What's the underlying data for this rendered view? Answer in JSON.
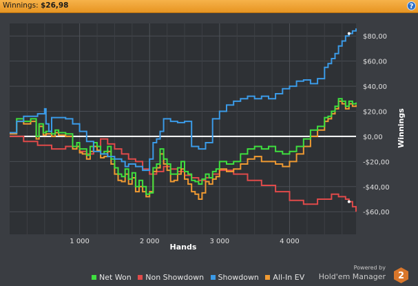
{
  "header": {
    "label": "Winnings:",
    "value": "$26,98",
    "help_icon": "?"
  },
  "chart_data": {
    "type": "line",
    "xlabel": "Hands",
    "ylabel": "Winnings",
    "xlim": [
      0,
      4950
    ],
    "ylim": [
      -78,
      90
    ],
    "x_ticks": [
      1000,
      2000,
      3000,
      4000
    ],
    "x_tick_labels": [
      "1 000",
      "2 000",
      "3 000",
      "4 000"
    ],
    "y_ticks": [
      80,
      60,
      40,
      20,
      0,
      -20,
      -40,
      -60
    ],
    "y_tick_labels": [
      "$80,00",
      "$60,00",
      "$40,00",
      "$20,00",
      "$0,00",
      "-$20,00",
      "-$40,00",
      "-$60,00"
    ],
    "grid": true,
    "legend_placement": "bottom",
    "series": [
      {
        "name": "Net Won",
        "color": "#3fe03f",
        "x": [
          0,
          100,
          200,
          300,
          380,
          420,
          480,
          520,
          600,
          650,
          700,
          800,
          900,
          960,
          1000,
          1040,
          1100,
          1150,
          1200,
          1250,
          1300,
          1350,
          1400,
          1450,
          1500,
          1550,
          1600,
          1650,
          1700,
          1750,
          1800,
          1850,
          1900,
          1950,
          2000,
          2050,
          2100,
          2150,
          2200,
          2250,
          2300,
          2350,
          2400,
          2450,
          2500,
          2550,
          2600,
          2650,
          2700,
          2750,
          2800,
          2850,
          2900,
          2950,
          3000,
          3100,
          3200,
          3300,
          3400,
          3500,
          3600,
          3700,
          3800,
          3900,
          4000,
          4100,
          4200,
          4300,
          4400,
          4500,
          4550,
          4600,
          4650,
          4700,
          4750,
          4800,
          4850,
          4900,
          4950
        ],
        "y": [
          3,
          14,
          12,
          14,
          0,
          10,
          3,
          4,
          2,
          5,
          3,
          2,
          -8,
          -5,
          -10,
          -10,
          -15,
          -8,
          -5,
          -8,
          -14,
          -12,
          -8,
          -18,
          -25,
          -30,
          -32,
          -26,
          -34,
          -29,
          -40,
          -35,
          -40,
          -46,
          -45,
          -25,
          -22,
          -10,
          -18,
          -22,
          -30,
          -30,
          -25,
          -20,
          -28,
          -30,
          -35,
          -36,
          -38,
          -34,
          -30,
          -33,
          -28,
          -26,
          -20,
          -22,
          -20,
          -14,
          -10,
          -8,
          -10,
          -8,
          -12,
          -14,
          -12,
          -8,
          -2,
          5,
          8,
          15,
          16,
          20,
          24,
          30,
          28,
          24,
          28,
          26,
          27
        ]
      },
      {
        "name": "Non Showdown",
        "color": "#e04a4a",
        "x": [
          0,
          200,
          400,
          600,
          800,
          1000,
          1100,
          1200,
          1300,
          1400,
          1500,
          1600,
          1700,
          1800,
          1900,
          2000,
          2100,
          2200,
          2300,
          2400,
          2500,
          2600,
          2700,
          2800,
          2900,
          3000,
          3200,
          3400,
          3600,
          3800,
          4000,
          4200,
          4400,
          4600,
          4700,
          4800,
          4850,
          4900,
          4950
        ],
        "y": [
          0,
          -4,
          -7,
          -10,
          -8,
          -12,
          -14,
          -8,
          -2,
          -6,
          -10,
          -14,
          -18,
          -20,
          -26,
          -30,
          -28,
          -24,
          -26,
          -28,
          -31,
          -33,
          -35,
          -33,
          -30,
          -27,
          -30,
          -35,
          -39,
          -44,
          -51,
          -54,
          -50,
          -46,
          -48,
          -50,
          -52,
          -56,
          -60
        ]
      },
      {
        "name": "Showdown",
        "color": "#3b9be8",
        "x": [
          0,
          100,
          200,
          400,
          500,
          520,
          560,
          600,
          800,
          900,
          1000,
          1100,
          1200,
          1300,
          1400,
          1500,
          1600,
          1650,
          1700,
          1800,
          1900,
          2000,
          2050,
          2100,
          2150,
          2200,
          2300,
          2400,
          2500,
          2600,
          2700,
          2800,
          2900,
          3000,
          3100,
          3200,
          3300,
          3400,
          3500,
          3600,
          3700,
          3800,
          3900,
          4000,
          4100,
          4200,
          4300,
          4400,
          4500,
          4550,
          4600,
          4650,
          4700,
          4750,
          4800,
          4850,
          4900,
          4950
        ],
        "y": [
          3,
          12,
          16,
          18,
          22,
          10,
          4,
          15,
          14,
          10,
          4,
          -4,
          -12,
          -14,
          -16,
          -18,
          -20,
          -24,
          -22,
          -24,
          -27,
          -18,
          -5,
          -2,
          4,
          14,
          12,
          11,
          12,
          -8,
          -10,
          -5,
          14,
          20,
          25,
          28,
          30,
          32,
          30,
          32,
          30,
          34,
          38,
          40,
          44,
          45,
          42,
          46,
          55,
          58,
          62,
          66,
          72,
          76,
          80,
          82,
          84,
          86
        ]
      },
      {
        "name": "All-In EV",
        "color": "#f09a32",
        "x": [
          0,
          100,
          200,
          300,
          380,
          420,
          480,
          520,
          600,
          650,
          700,
          800,
          900,
          960,
          1000,
          1040,
          1100,
          1150,
          1200,
          1250,
          1300,
          1350,
          1400,
          1450,
          1500,
          1550,
          1600,
          1650,
          1700,
          1750,
          1800,
          1850,
          1900,
          1950,
          2000,
          2050,
          2100,
          2150,
          2200,
          2250,
          2300,
          2350,
          2400,
          2450,
          2500,
          2550,
          2600,
          2650,
          2700,
          2750,
          2800,
          2850,
          2900,
          2950,
          3000,
          3100,
          3200,
          3300,
          3400,
          3500,
          3600,
          3700,
          3800,
          3900,
          4000,
          4100,
          4200,
          4300,
          4400,
          4500,
          4550,
          4600,
          4650,
          4700,
          4750,
          4800,
          4850,
          4900,
          4950
        ],
        "y": [
          2,
          12,
          10,
          12,
          -2,
          8,
          1,
          2,
          0,
          3,
          1,
          0,
          -10,
          -8,
          -13,
          -14,
          -18,
          -12,
          -8,
          -11,
          -17,
          -16,
          -12,
          -22,
          -30,
          -35,
          -36,
          -30,
          -38,
          -33,
          -44,
          -40,
          -44,
          -48,
          -44,
          -28,
          -25,
          -14,
          -22,
          -27,
          -36,
          -35,
          -30,
          -26,
          -34,
          -38,
          -44,
          -46,
          -50,
          -45,
          -36,
          -38,
          -34,
          -32,
          -26,
          -28,
          -26,
          -22,
          -18,
          -16,
          -20,
          -20,
          -22,
          -24,
          -20,
          -14,
          -8,
          0,
          5,
          12,
          14,
          18,
          22,
          28,
          26,
          22,
          26,
          24,
          25
        ]
      }
    ]
  },
  "branding": {
    "powered_by": "Powered by",
    "name": "Hold'em Manager",
    "badge": "2"
  }
}
